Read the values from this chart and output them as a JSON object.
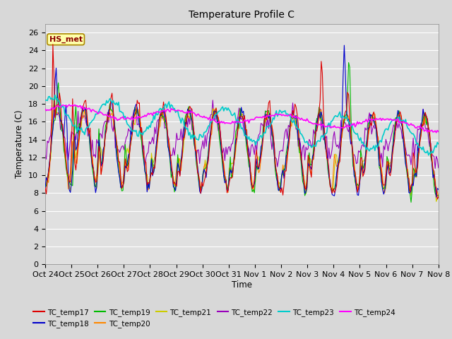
{
  "title": "Temperature Profile C",
  "ylabel": "Temperature (C)",
  "xlabel": "Time",
  "annotation": "HS_met",
  "x_tick_labels": [
    "Oct 24",
    "Oct 25",
    "Oct 26",
    "Oct 27",
    "Oct 28",
    "Oct 29",
    "Oct 30",
    "Oct 31",
    "Nov 1",
    "Nov 2",
    "Nov 3",
    "Nov 4",
    "Nov 5",
    "Nov 6",
    "Nov 7",
    "Nov 8"
  ],
  "ylim": [
    0,
    27
  ],
  "yticks": [
    0,
    2,
    4,
    6,
    8,
    10,
    12,
    14,
    16,
    18,
    20,
    22,
    24,
    26
  ],
  "series_colors": {
    "TC_temp17": "#dd0000",
    "TC_temp18": "#0000cc",
    "TC_temp19": "#00bb00",
    "TC_temp20": "#ff8800",
    "TC_temp21": "#cccc00",
    "TC_temp22": "#9900bb",
    "TC_temp23": "#00cccc",
    "TC_temp24": "#ff00ff"
  },
  "background_color": "#e0e0e0",
  "grid_color": "#ffffff",
  "fig_bg": "#d8d8d8"
}
